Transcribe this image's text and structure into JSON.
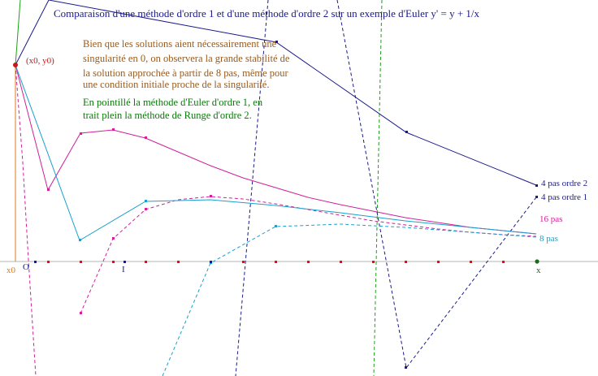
{
  "title": "Comparaison d'une méthode d'ordre 1 et d'une méthode d'ordre 2 sur un exemple d'Euler y' = y + 1/x",
  "note_stability": [
    "Bien que les solutions aient nécessairement une",
    "singularité en 0, on observera la grande stabilité de",
    "la solution approchée à partir de 8 pas, même pour",
    "une condition initiale proche de la singularité."
  ],
  "note_legend": [
    "En pointillé la méthode d'Euler d'ordre 1, en",
    "trait plein la méthode de Runge d'ordre 2."
  ],
  "point_label": "(x0, y0)",
  "axis_labels": {
    "x0": "x0",
    "origin": "O",
    "unit": "I",
    "x": "x"
  },
  "series_labels": {
    "p4_o2": "4 pas ordre 2",
    "p4_o1": "4 pas ordre 1",
    "p16": "16 pas",
    "p8": "8 pas"
  },
  "colors": {
    "navy": "#1a1a8c",
    "magenta": "#d0209a",
    "cyan": "#1aa0cc",
    "green": "#1aa01a",
    "orange": "#e07818",
    "red": "#c81818",
    "darkred": "#a01010"
  }
}
